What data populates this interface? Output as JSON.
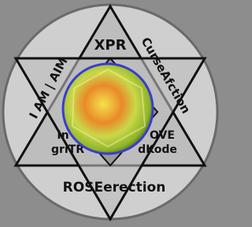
{
  "logo": {
    "top": "XPR",
    "right": "CurseAfction",
    "left": "I AM | AIM",
    "middle_left": [
      "In",
      "griTR"
    ],
    "middle_right": [
      "OVE",
      "dKode"
    ],
    "bottom": "ROSEerection"
  }
}
